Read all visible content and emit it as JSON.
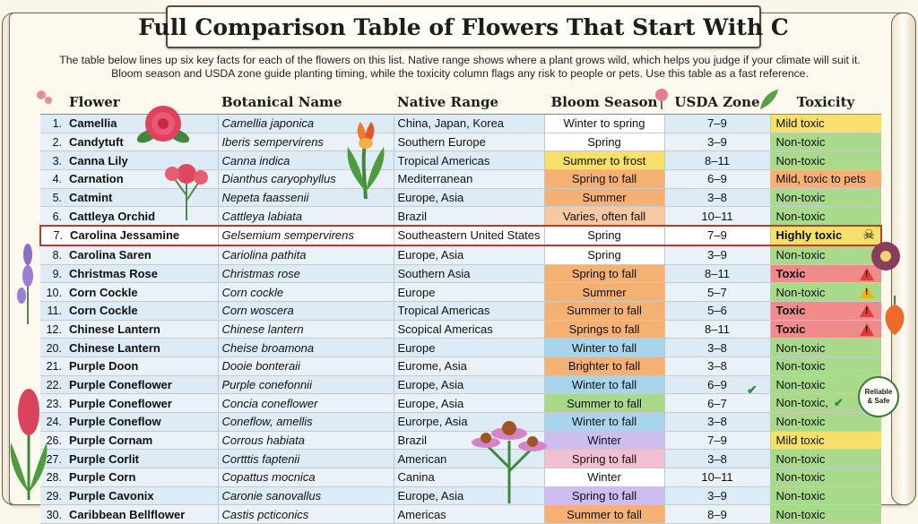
{
  "title": "Full Comparison Table of Flowers That Start With C",
  "intro": [
    "The table below lines up six key facts for each of the flowers on this list. Native range shows where a plant grows wild, which helps you judge if your climate will suit it.",
    "Bloom season and USDA zone guide planting timing, while the toxicity column flags any risk to people or pets. Use this table as a fast reference."
  ],
  "headers": [
    "Flower",
    "Botanical Name",
    "Native Range",
    "Bloom Season",
    "USDA Zone",
    "Toxicity"
  ],
  "badge": [
    "Reliable",
    "& Safe"
  ],
  "colors": {
    "green": "#a9d98a",
    "yellow": "#f6df6a",
    "orange": "#f5b073",
    "red": "#ef8b8b",
    "peach": "#f6c9a3",
    "blue": "#a8d5ec",
    "lavender": "#cdbdf0",
    "pink": "#f3bfd2",
    "white": "#ffffff"
  },
  "rows": [
    {
      "num": "1.",
      "name": "Camellia",
      "bot": "Camellia japonica",
      "range": "China, Japan, Korea",
      "season": "Winter to spring",
      "sc": "white",
      "zone": "7–9",
      "tox": "Mild toxic",
      "tc": "yellow"
    },
    {
      "num": "2.",
      "name": "Candytuft",
      "bot": "Iberis sempervirens",
      "range": "Southern Europe",
      "season": "Spring",
      "sc": "white",
      "zone": "3–9",
      "tox": "Non-toxic",
      "tc": "green"
    },
    {
      "num": "3.",
      "name": "Canna Lily",
      "bot": "Canna indica",
      "range": "Tropical Americas",
      "season": "Summer to frost",
      "sc": "yellow",
      "zone": "8–11",
      "tox": "Non-toxic",
      "tc": "green"
    },
    {
      "num": "4.",
      "name": "Carnation",
      "bot": "Dianthus caryophyllus",
      "range": "Mediterranean",
      "season": "Spring to fall",
      "sc": "orange",
      "zone": "6–9",
      "tox": "Mild, toxic to pets",
      "tc": "orange"
    },
    {
      "num": "5.",
      "name": "Catmint",
      "bot": "Nepeta faassenii",
      "range": "Europe, Asia",
      "season": "Summer",
      "sc": "orange",
      "zone": "3–8",
      "tox": "Non-toxic",
      "tc": "green"
    },
    {
      "num": "6.",
      "name": "Cattleya Orchid",
      "bot": "Cattleya labiata",
      "range": "Brazil",
      "season": "Varies, often fall",
      "sc": "peach",
      "zone": "10–11",
      "tox": "Non-toxic",
      "tc": "green"
    },
    {
      "num": "7.",
      "name": "Carolina Jessamine",
      "bot": "Gelsemium sempervirens",
      "range": "Southeastern United States",
      "season": "Spring",
      "sc": "white",
      "zone": "7–9",
      "tox": "Highly toxic",
      "tc": "yellow",
      "hl": true,
      "skull": "☠"
    },
    {
      "num": "8.",
      "name": "Carolina Saren",
      "bot": "Cariolina pathita",
      "range": "Europe, Asia",
      "season": "Spring",
      "sc": "white",
      "zone": "3–9",
      "tox": "Non-toxic",
      "tc": "green"
    },
    {
      "num": "9.",
      "name": "Christmas Rose",
      "bot": "Christmas rose",
      "range": "Southern Asia",
      "season": "Spring to fall",
      "sc": "orange",
      "zone": "8–11",
      "tox": "Toxic",
      "tc": "red",
      "warn": "red"
    },
    {
      "num": "10.",
      "name": "Corn Cockle",
      "bot": "Corn cockle",
      "range": "Europe",
      "season": "Summer",
      "sc": "orange",
      "zone": "5–7",
      "tox": "Non-toxic",
      "tc": "green",
      "warn": "yellow"
    },
    {
      "num": "11.",
      "name": "Corn Cockle",
      "bot": "Corn woscera",
      "range": "Tropical Americas",
      "season": "Summer to fall",
      "sc": "orange",
      "zone": "5–6",
      "tox": "Toxic",
      "tc": "red",
      "warn": "red"
    },
    {
      "num": "12.",
      "name": "Chinese Lantern",
      "bot": "Chinese lantern",
      "range": "Scopical Americas",
      "season": "Springs to fall",
      "sc": "orange",
      "zone": "8–11",
      "tox": "Toxic",
      "tc": "red",
      "warn": "red"
    },
    {
      "num": "20.",
      "name": "Chinese Lantern",
      "bot": "Cheise broamona",
      "range": "Europe",
      "season": "Winter to fall",
      "sc": "blue",
      "zone": "3–8",
      "tox": "Non-toxic",
      "tc": "green"
    },
    {
      "num": "21.",
      "name": "Purple Doon",
      "bot": "Dooie bonteraii",
      "range": "Eurome, Asia",
      "season": "Brighter to fall",
      "sc": "orange",
      "zone": "3–8",
      "tox": "Non-toxic",
      "tc": "green"
    },
    {
      "num": "22.",
      "name": "Purple Coneflower",
      "bot": "Purple conefonnii",
      "range": "Europe, Asia",
      "season": "Winter to fall",
      "sc": "blue",
      "zone": "6–9",
      "tox": "Non-toxic",
      "tc": "green"
    },
    {
      "num": "23.",
      "name": "Purple Coneflower",
      "bot": "Concia coneflower",
      "range": "Europe, Asia",
      "season": "Summer to fall",
      "sc": "green",
      "zone": "6–7",
      "tox": "Non-toxic,",
      "tc": "green",
      "check": "✔"
    },
    {
      "num": "24.",
      "name": "Purple Coneflow",
      "bot": "Coneflow, amellis",
      "range": "Eurorpe, Asia",
      "season": "Winter to fall",
      "sc": "blue",
      "zone": "3–8",
      "tox": "Non-toxic",
      "tc": "green"
    },
    {
      "num": "26.",
      "name": "Purple Cornam",
      "bot": "Corrous habiata",
      "range": "Brazil",
      "season": "Winter",
      "sc": "lavender",
      "zone": "7–9",
      "tox": "Mild toxic",
      "tc": "yellow"
    },
    {
      "num": "27.",
      "name": "Purple Corlit",
      "bot": "Cortttis faptenii",
      "range": "American",
      "season": "Spring to fall",
      "sc": "pink",
      "zone": "3–8",
      "tox": "Non-toxic",
      "tc": "green"
    },
    {
      "num": "28.",
      "name": "Purple Corn",
      "bot": "Copattus mocnica",
      "range": "Canina",
      "season": "Winter",
      "sc": "white",
      "zone": "10–11",
      "tox": "Non-toxic",
      "tc": "green"
    },
    {
      "num": "29.",
      "name": "Purple Cavonix",
      "bot": "Caronie sanovallus",
      "range": "Europe, Asia",
      "season": "Spring to fall",
      "sc": "lavender",
      "zone": "3–9",
      "tox": "Non-toxic",
      "tc": "green"
    },
    {
      "num": "30.",
      "name": "Caribbean Bellflower",
      "bot": "Castis pcticonics",
      "range": "Americas",
      "season": "Summer to fall",
      "sc": "orange",
      "zone": "8–9",
      "tox": "Non-toxic",
      "tc": "green"
    }
  ]
}
